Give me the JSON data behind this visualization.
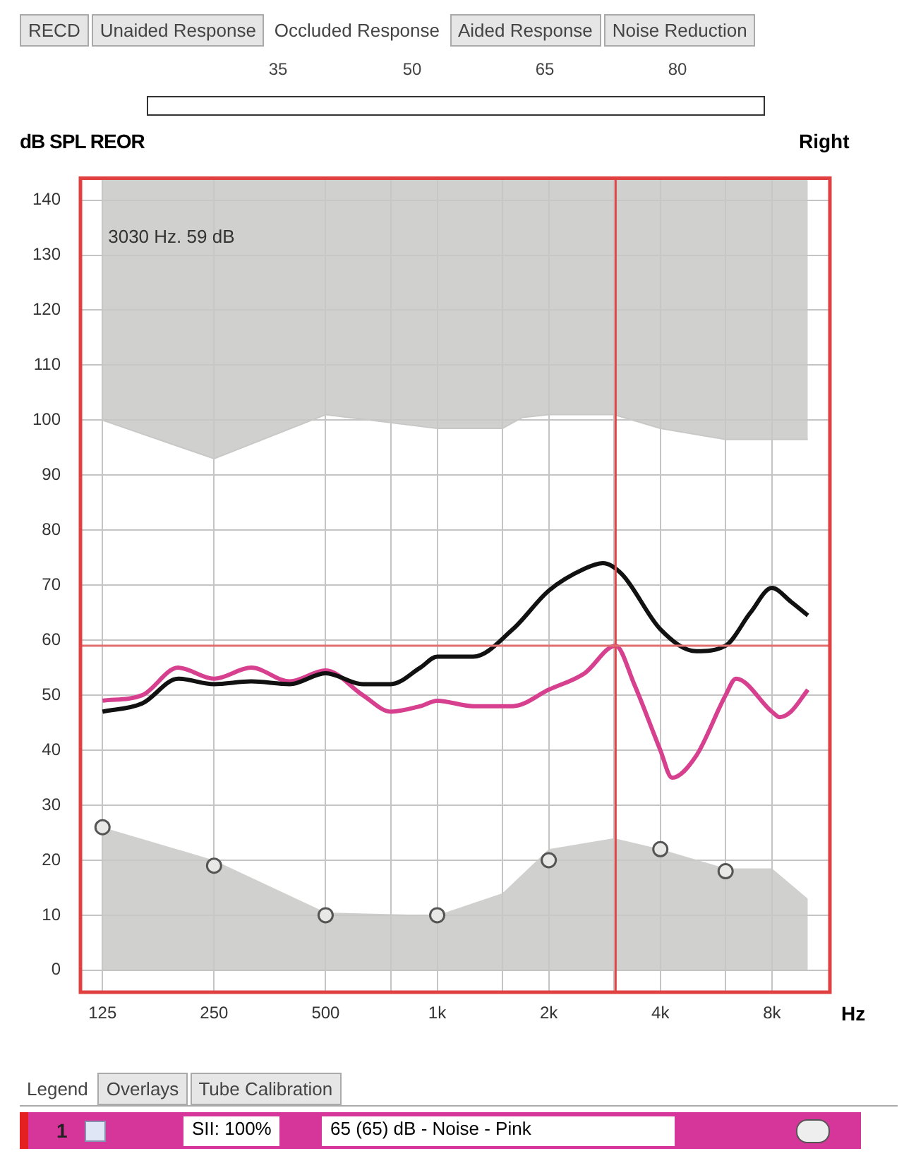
{
  "chart_data": {
    "type": "line",
    "ylabel": "dB SPL REOR",
    "xlabel": "Hz",
    "subtitle": "Right",
    "annotations": [
      "3030 Hz. 59 dB",
      "RECD",
      "Unaided Response",
      "Occluded Response",
      "Aided Response",
      "Noise Reduction",
      "35",
      "50",
      "65",
      "80",
      "Legend",
      "Overlays",
      "Tube Calibration",
      "1",
      "SII: 100%",
      "65 (65) dB - Noise - Pink"
    ],
    "log": "x",
    "xlim": [
      109,
      11470
    ],
    "xticks": [
      125,
      250,
      500,
      {
        "value": 750,
        "label": null
      },
      {
        "value": 1000,
        "label": "1k"
      },
      {
        "value": 1500,
        "label": null
      },
      {
        "value": 2000,
        "label": "2k"
      },
      {
        "value": 3000,
        "label": null
      },
      {
        "value": 4000,
        "label": "4k"
      },
      {
        "value": 6000,
        "label": null
      },
      {
        "value": 8000,
        "label": "8k"
      }
    ],
    "ylim": [
      -4,
      144
    ],
    "yticks": [
      0,
      10,
      20,
      30,
      40,
      50,
      60,
      70,
      80,
      90,
      100,
      110,
      120,
      130,
      140
    ],
    "grid": true,
    "legend": false,
    "series": [
      {
        "type": "line",
        "color": "#c8c8c6",
        "x": [
          125,
          250,
          500,
          1000,
          1500,
          1700,
          2000,
          3000,
          4000,
          6000,
          10000
        ],
        "values": [
          100,
          93,
          101,
          98.5,
          98.5,
          100.5,
          101,
          101,
          98.5,
          96.5,
          96.5
        ],
        "lower": [
          100,
          93,
          101,
          98.5,
          98.5,
          100.5,
          101,
          101,
          98.5,
          96.5,
          96.5
        ],
        "upper": [
          144,
          144,
          144,
          144,
          144,
          144,
          144,
          144,
          144,
          144,
          144
        ]
      },
      {
        "type": "area",
        "color": "#c8c8c6",
        "x": [
          125,
          250,
          500,
          1000,
          1500,
          2000,
          3000,
          4000,
          6000,
          8000,
          10000
        ],
        "values": [
          26,
          20,
          10.5,
          10,
          14,
          22,
          24,
          22,
          18.5,
          18.5,
          13
        ]
      },
      {
        "type": "line",
        "color": "#111111",
        "x": [
          125,
          160,
          200,
          250,
          315,
          400,
          500,
          630,
          750,
          900,
          1000,
          1250,
          1600,
          2000,
          2500,
          2800,
          3150,
          4000,
          5000,
          6000,
          7000,
          8000,
          9000,
          10000
        ],
        "values": [
          47,
          48.5,
          53,
          52,
          52.5,
          52,
          54,
          52,
          52,
          55,
          57,
          57,
          62,
          69,
          73,
          74,
          72,
          62,
          58,
          59,
          65,
          69.5,
          67,
          64.5
        ]
      },
      {
        "type": "line",
        "color": "#d6408f",
        "x": [
          125,
          160,
          200,
          250,
          315,
          400,
          500,
          630,
          750,
          900,
          1000,
          1250,
          1600,
          2000,
          2500,
          3030,
          3400,
          4000,
          4300,
          5000,
          6000,
          6400,
          8000,
          8400,
          9000,
          10000
        ],
        "values": [
          49,
          50,
          55,
          53,
          55,
          52.5,
          54.5,
          50,
          47,
          48,
          49,
          48,
          48,
          51,
          54,
          59,
          52,
          40,
          35,
          39,
          50,
          53,
          47,
          46,
          47,
          51
        ]
      },
      {
        "type": "scatter",
        "marker": "circle",
        "color": "#555555",
        "x": [
          125,
          250,
          500,
          1000,
          2000,
          4000,
          6000
        ],
        "values": [
          26,
          19,
          10,
          10,
          20,
          22,
          18
        ]
      }
    ],
    "ref_lines": [
      {
        "axis": "x",
        "value": 3030,
        "color": "#e04848"
      },
      {
        "axis": "y",
        "value": 59,
        "color": "#e07070"
      }
    ]
  }
}
